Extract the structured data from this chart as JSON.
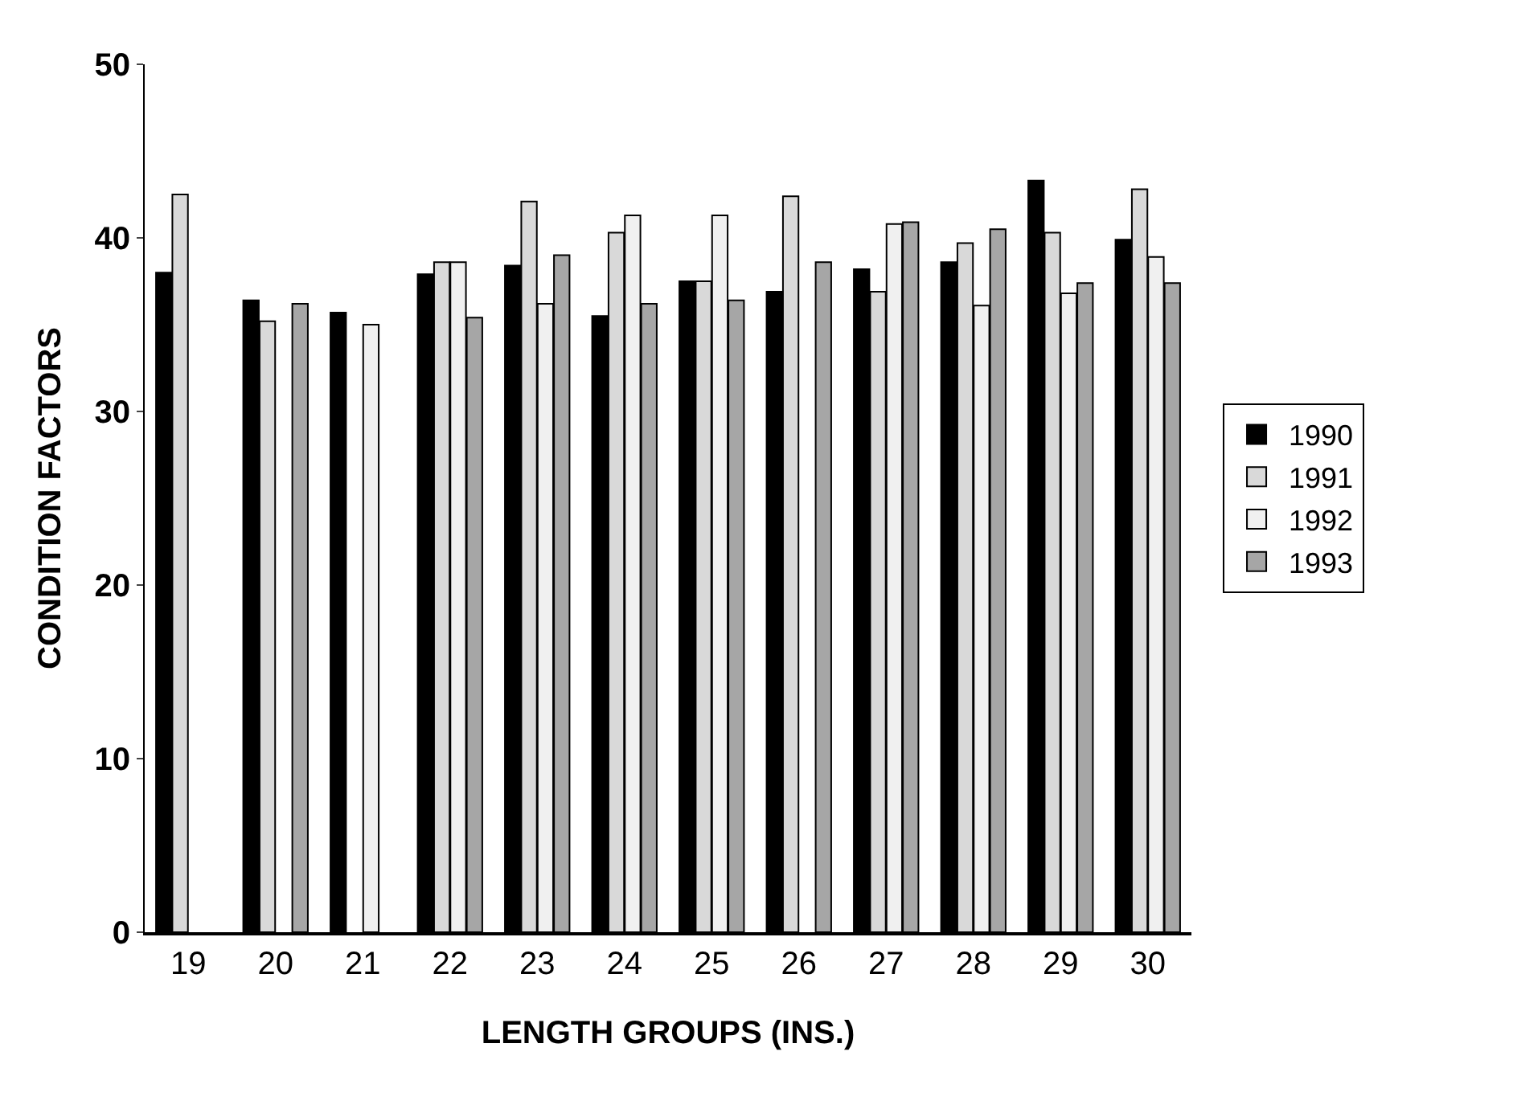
{
  "chart_data": {
    "type": "bar",
    "xlabel": "LENGTH GROUPS (INS.)",
    "ylabel": "CONDITION FACTORS",
    "categories": [
      "19",
      "20",
      "21",
      "22",
      "23",
      "24",
      "25",
      "26",
      "27",
      "28",
      "29",
      "30"
    ],
    "series": [
      {
        "name": "1990",
        "color": "#000000",
        "values": [
          38.0,
          36.4,
          35.7,
          37.9,
          38.4,
          35.5,
          37.5,
          36.9,
          38.2,
          38.6,
          43.3,
          39.9
        ]
      },
      {
        "name": "1991",
        "color": "#d9d9d9",
        "values": [
          42.5,
          35.2,
          null,
          38.6,
          42.1,
          40.3,
          37.5,
          42.4,
          36.9,
          39.7,
          40.3,
          42.8
        ]
      },
      {
        "name": "1992",
        "color": "#f0f0f0",
        "values": [
          null,
          null,
          35.0,
          38.6,
          36.2,
          41.3,
          41.3,
          null,
          40.8,
          36.1,
          36.8,
          38.9
        ]
      },
      {
        "name": "1993",
        "color": "#a6a6a6",
        "values": [
          null,
          36.2,
          null,
          35.4,
          39.0,
          36.2,
          36.4,
          38.6,
          40.9,
          40.5,
          37.4,
          37.4
        ]
      }
    ],
    "ylim": [
      0,
      50
    ],
    "yticks": [
      0,
      10,
      20,
      30,
      40,
      50
    ],
    "legend": "right"
  }
}
